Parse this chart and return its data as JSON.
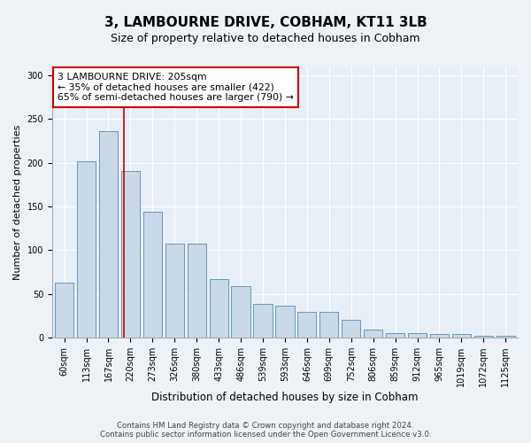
{
  "title": "3, LAMBOURNE DRIVE, COBHAM, KT11 3LB",
  "subtitle": "Size of property relative to detached houses in Cobham",
  "xlabel": "Distribution of detached houses by size in Cobham",
  "ylabel": "Number of detached properties",
  "categories": [
    "60sqm",
    "113sqm",
    "167sqm",
    "220sqm",
    "273sqm",
    "326sqm",
    "380sqm",
    "433sqm",
    "486sqm",
    "539sqm",
    "593sqm",
    "646sqm",
    "699sqm",
    "752sqm",
    "806sqm",
    "859sqm",
    "912sqm",
    "965sqm",
    "1019sqm",
    "1072sqm",
    "1125sqm"
  ],
  "values": [
    63,
    202,
    236,
    191,
    144,
    108,
    108,
    67,
    59,
    39,
    37,
    30,
    30,
    20,
    9,
    5,
    5,
    4,
    4,
    2,
    2
  ],
  "bar_color": "#c9d9e8",
  "bar_edge_color": "#6699bb",
  "vline_color": "#cc0000",
  "annotation_text": "3 LAMBOURNE DRIVE: 205sqm\n← 35% of detached houses are smaller (422)\n65% of semi-detached houses are larger (790) →",
  "annotation_box_color": "#ffffff",
  "annotation_box_edge": "#cc0000",
  "bg_color": "#edf2f7",
  "plot_bg": "#e8eef5",
  "footer_text": "Contains HM Land Registry data © Crown copyright and database right 2024.\nContains public sector information licensed under the Open Government Licence v3.0.",
  "ylim": [
    0,
    310
  ],
  "yticks": [
    0,
    50,
    100,
    150,
    200,
    250,
    300
  ],
  "title_fontsize": 11,
  "subtitle_fontsize": 9
}
